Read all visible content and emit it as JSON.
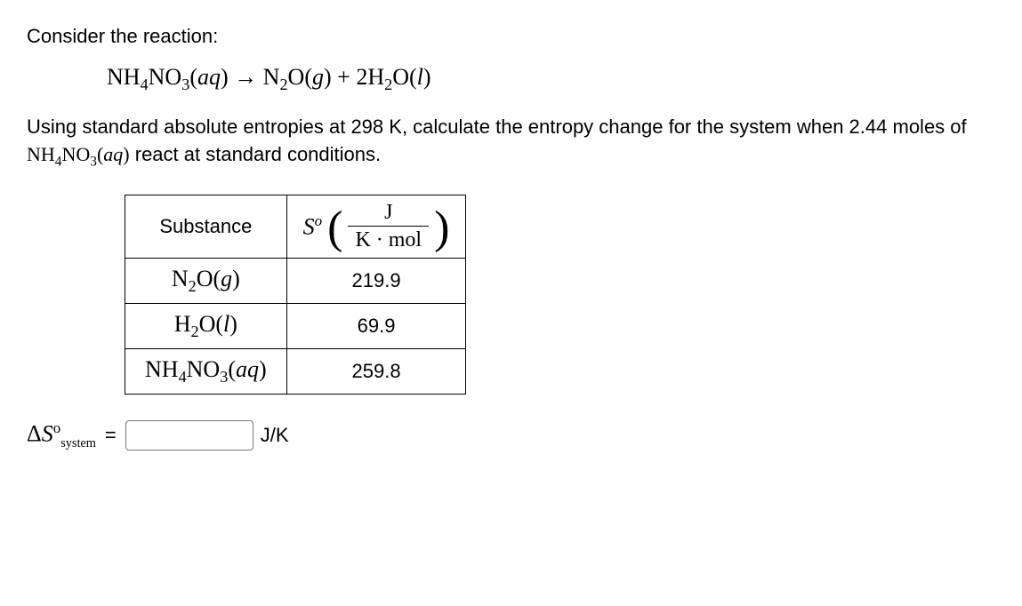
{
  "intro": "Consider the reaction:",
  "reaction": {
    "lhs_formula": "NH",
    "lhs_sub1": "4",
    "lhs_mid": "NO",
    "lhs_sub2": "3",
    "lhs_state": "(aq)",
    "arrow": " → ",
    "p1_formula": "N",
    "p1_sub": "2",
    "p1_mid": "O",
    "p1_state": "(g)",
    "plus": " + ",
    "p2_coeff": "2",
    "p2_formula": "H",
    "p2_sub": "2",
    "p2_mid": "O",
    "p2_state": "(l)"
  },
  "prompt_pre": "Using standard absolute entropies at 298 K, calculate the entropy change for the system when 2.44 moles of ",
  "prompt_species": "NH₄NO₃(aq)",
  "prompt_post": " react at standard conditions.",
  "table": {
    "header_substance": "Substance",
    "s_symbol": "S",
    "s_sup": "o",
    "unit_num": "J",
    "unit_den": "K · mol",
    "rows": [
      {
        "substance_html": "N<sub>2</sub>O(<i>g</i>)",
        "value": "219.9"
      },
      {
        "substance_html": "H<sub>2</sub>O(<i>l</i>)",
        "value": "69.9"
      },
      {
        "substance_html": "NH<sub>4</sub>NO<sub>3</sub>(<i>aq</i>)",
        "value": "259.8"
      }
    ]
  },
  "answer": {
    "delta": "Δ",
    "s": "S",
    "sup": "o",
    "sub": "system",
    "equals": "=",
    "unit": "J/K"
  }
}
